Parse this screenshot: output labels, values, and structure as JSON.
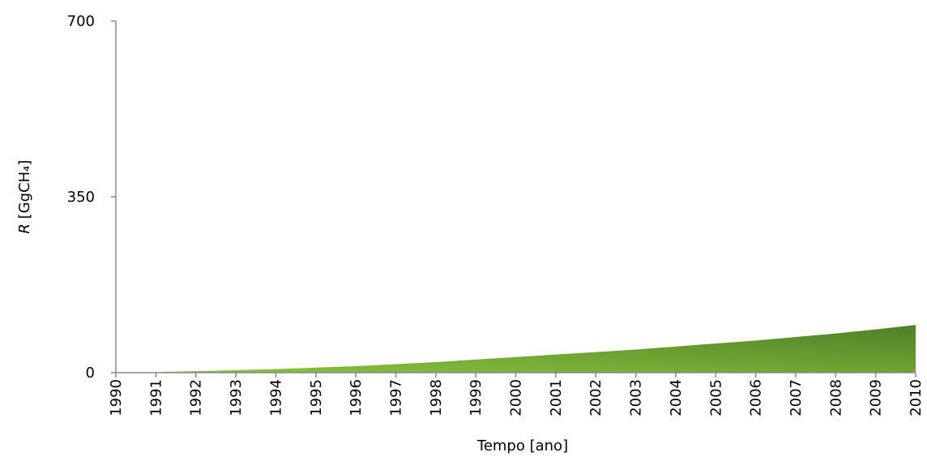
{
  "chart_data": {
    "type": "area",
    "x_label": "Tempo [ano]",
    "y_label_symbol": "R",
    "y_label_unit": "[GgCH₄]",
    "x": [
      1990,
      1991,
      1992,
      1993,
      1994,
      1995,
      1996,
      1997,
      1998,
      1999,
      2000,
      2001,
      2002,
      2003,
      2004,
      2005,
      2006,
      2007,
      2008,
      2009,
      2010
    ],
    "values": [
      0,
      1,
      3,
      5,
      7,
      10,
      13,
      17,
      21,
      26,
      31,
      36,
      41,
      46,
      52,
      58,
      64,
      71,
      78,
      86,
      95
    ],
    "colors": [
      "#8dc63f",
      "#4f8027"
    ],
    "xlim": [
      1990,
      2010
    ],
    "xticks": [
      1990,
      1991,
      1992,
      1993,
      1994,
      1995,
      1996,
      1997,
      1998,
      1999,
      2000,
      2001,
      2002,
      2003,
      2004,
      2005,
      2006,
      2007,
      2008,
      2009,
      2010
    ],
    "ylim": [
      0,
      700
    ],
    "yticks": [
      0,
      350,
      700
    ]
  }
}
